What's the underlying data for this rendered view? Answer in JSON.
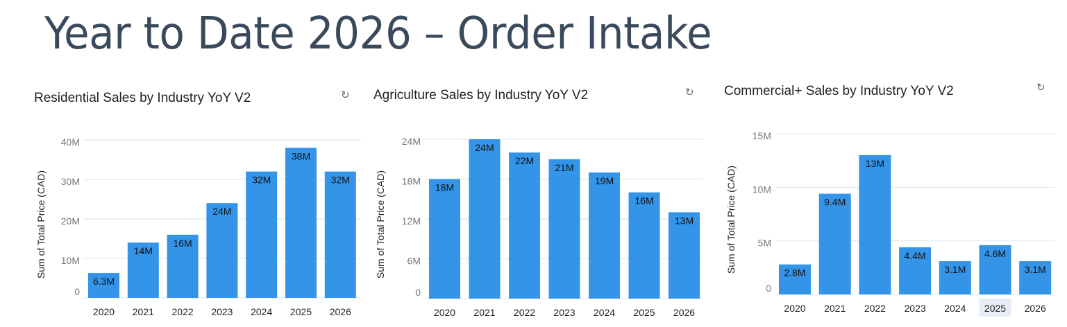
{
  "page_title": "Year to Date 2026 – Order Intake",
  "icons": {
    "refresh": "refresh-icon"
  },
  "colors": {
    "bar": "#3394e8",
    "grid": "#e6edf3",
    "highlight": "#e8ecf6"
  },
  "chart_data": [
    {
      "type": "bar",
      "title": "Residential Sales by Industry YoY V2",
      "ylabel": "Sum of Total Price (CAD)",
      "xlabel": "",
      "categories": [
        "2020",
        "2021",
        "2022",
        "2023",
        "2024",
        "2025",
        "2026"
      ],
      "values": [
        6.3,
        14,
        16,
        24,
        32,
        38,
        32
      ],
      "data_labels": [
        "6.3M",
        "14M",
        "16M",
        "24M",
        "32M",
        "38M",
        "32M"
      ],
      "unit": "M",
      "ylim": [
        0,
        40
      ],
      "yticks": [
        0,
        10,
        20,
        30,
        40
      ],
      "ytick_labels": [
        "0",
        "10M",
        "20M",
        "30M",
        "40M"
      ],
      "grid": true
    },
    {
      "type": "bar",
      "title": "Agriculture Sales by Industry YoY V2",
      "ylabel": "Sum of Total Price (CAD)",
      "xlabel": "",
      "categories": [
        "2020",
        "2021",
        "2022",
        "2023",
        "2024",
        "2025",
        "2026"
      ],
      "values": [
        18,
        24,
        22,
        21,
        19,
        16,
        13
      ],
      "data_labels": [
        "18M",
        "24M",
        "22M",
        "21M",
        "19M",
        "16M",
        "13M"
      ],
      "unit": "M",
      "ylim": [
        0,
        24
      ],
      "yticks": [
        0,
        6,
        12,
        18,
        24
      ],
      "ytick_labels": [
        "0",
        "6M",
        "12M",
        "18M",
        "24M"
      ],
      "grid": true
    },
    {
      "type": "bar",
      "title": "Commercial+ Sales by Industry YoY V2",
      "ylabel": "Sum of Total Price (CAD)",
      "xlabel": "",
      "categories": [
        "2020",
        "2021",
        "2022",
        "2023",
        "2024",
        "2025",
        "2026"
      ],
      "values": [
        2.8,
        9.4,
        13,
        4.4,
        3.1,
        4.6,
        3.1
      ],
      "data_labels": [
        "2.8M",
        "9.4M",
        "13M",
        "4.4M",
        "3.1M",
        "4.6M",
        "3.1M"
      ],
      "unit": "M",
      "ylim": [
        0,
        15
      ],
      "yticks": [
        0,
        5,
        10,
        15
      ],
      "ytick_labels": [
        "0",
        "5M",
        "10M",
        "15M"
      ],
      "highlighted_category": "2025",
      "grid": true
    }
  ]
}
